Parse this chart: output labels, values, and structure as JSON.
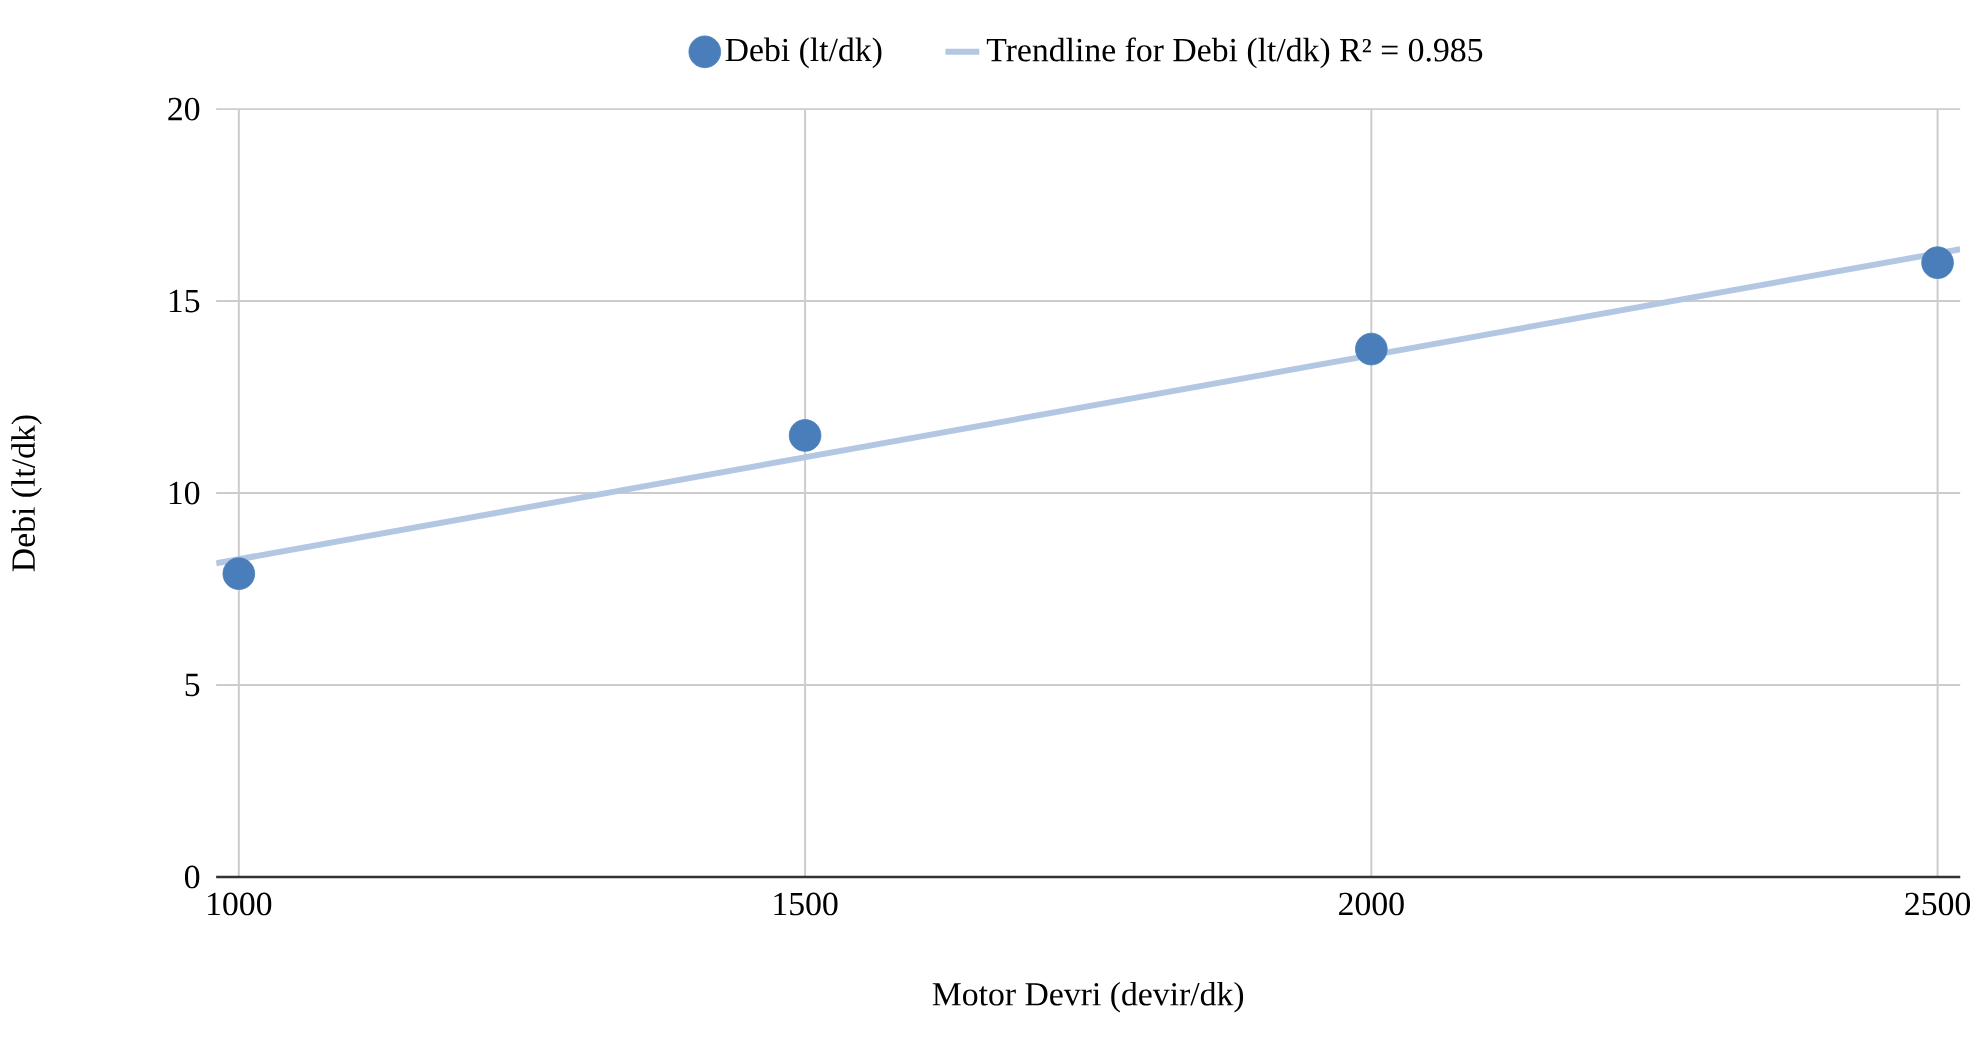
{
  "chart_data": {
    "type": "scatter",
    "xlabel": "Motor Devri (devir/dk)",
    "ylabel": "Debi (lt/dk)",
    "xlim": [
      980,
      2520
    ],
    "ylim": [
      0,
      20
    ],
    "xticks": [
      1000,
      1500,
      2000,
      2500
    ],
    "yticks": [
      0,
      5,
      10,
      15,
      20
    ],
    "grid": true,
    "legend": "top",
    "series": [
      {
        "name": "Debi (lt/dk)",
        "marker": "circle",
        "color": "#4a7ebb",
        "x": [
          1000,
          1500,
          2000,
          2500
        ],
        "values": [
          7.9,
          11.5,
          13.75,
          16
        ]
      },
      {
        "name": "Trendline for Debi (lt/dk) R² = 0.985",
        "type": "line",
        "color": "#b3c7e3",
        "x": [
          980,
          2520
        ],
        "values": [
          8.17,
          16.35
        ],
        "line_style": "solid",
        "marker": "none"
      }
    ]
  }
}
